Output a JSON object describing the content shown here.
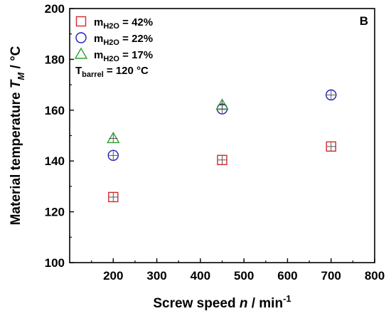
{
  "chart_data": {
    "type": "scatter",
    "panel_label": "B",
    "xlabel": {
      "main": "Screw speed ",
      "var": "n",
      "unit": " / min",
      "sup": "-1"
    },
    "ylabel": {
      "main": "Material temperature ",
      "var": "T",
      "sub": "M",
      "unit": " / °C"
    },
    "xlim": [
      100,
      800
    ],
    "ylim": [
      100,
      200
    ],
    "xticks": [
      200,
      300,
      400,
      500,
      600,
      700,
      800
    ],
    "yticks": [
      100,
      120,
      140,
      160,
      180,
      200
    ],
    "xtick_labels": [
      "200",
      "300",
      "400",
      "500",
      "600",
      "700",
      "800"
    ],
    "ytick_labels": [
      "100",
      "120",
      "140",
      "160",
      "180",
      "200"
    ],
    "grid": false,
    "legend_position": "top-left",
    "series": [
      {
        "legend": {
          "base": "m",
          "sub": "H2O",
          "rest": " = 42%"
        },
        "marker": "square",
        "color": "#d62728",
        "points": [
          {
            "x": 200,
            "y": 125.8
          },
          {
            "x": 450,
            "y": 140.4
          },
          {
            "x": 700,
            "y": 145.7
          }
        ]
      },
      {
        "legend": {
          "base": "m",
          "sub": "H2O",
          "rest": " = 22%"
        },
        "marker": "circle",
        "color": "#1f1fb4",
        "points": [
          {
            "x": 200,
            "y": 142.2
          },
          {
            "x": 450,
            "y": 160.5
          },
          {
            "x": 700,
            "y": 166.0
          }
        ]
      },
      {
        "legend": {
          "base": "m",
          "sub": "H2O",
          "rest": " = 17%"
        },
        "marker": "triangle",
        "color": "#2ca02c",
        "points": [
          {
            "x": 200,
            "y": 148.9
          },
          {
            "x": 450,
            "y": 162.0
          }
        ]
      }
    ],
    "annotation": {
      "base": "T",
      "sub": "barrel",
      "rest": " = 120 °C"
    }
  }
}
